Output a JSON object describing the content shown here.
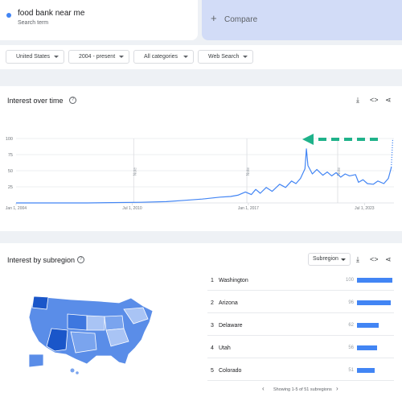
{
  "search": {
    "term": "food bank near me",
    "term_sub": "Search term",
    "term_color": "#4285f4",
    "compare_label": "Compare"
  },
  "filters": {
    "region": "United States",
    "period": "2004 - present",
    "category": "All categories",
    "source": "Web Search"
  },
  "interest_over_time": {
    "title": "Interest over time",
    "icons": [
      "help-icon",
      "download-icon",
      "embed-icon",
      "share-icon"
    ],
    "note_label": "Note",
    "chart_data": {
      "type": "line",
      "y_ticks": [
        100,
        75,
        50,
        25
      ],
      "ylim": [
        0,
        100
      ],
      "x_tick_labels": [
        "Jan 1, 2004",
        "Jul 1, 2010",
        "Jan 1, 2017",
        "Jul 1, 2023"
      ],
      "notes_at": [
        "2010-08",
        "2016-12",
        "2022-01"
      ],
      "series": [
        {
          "color": "#4285f4",
          "points": [
            [
              "2004-01",
              0
            ],
            [
              "2008-01",
              0
            ],
            [
              "2011-01",
              1
            ],
            [
              "2012-06",
              2
            ],
            [
              "2013-06",
              4
            ],
            [
              "2014-06",
              6
            ],
            [
              "2015-06",
              9
            ],
            [
              "2016-01",
              10
            ],
            [
              "2016-06",
              12
            ],
            [
              "2016-11",
              17
            ],
            [
              "2017-03",
              13
            ],
            [
              "2017-06",
              21
            ],
            [
              "2017-09",
              15
            ],
            [
              "2018-01",
              24
            ],
            [
              "2018-05",
              18
            ],
            [
              "2018-10",
              29
            ],
            [
              "2019-02",
              24
            ],
            [
              "2019-06",
              34
            ],
            [
              "2019-09",
              30
            ],
            [
              "2019-12",
              38
            ],
            [
              "2020-03",
              53
            ],
            [
              "2020-04",
              84
            ],
            [
              "2020-05",
              58
            ],
            [
              "2020-08",
              45
            ],
            [
              "2020-11",
              52
            ],
            [
              "2021-03",
              43
            ],
            [
              "2021-06",
              48
            ],
            [
              "2021-09",
              42
            ],
            [
              "2021-12",
              47
            ],
            [
              "2022-03",
              40
            ],
            [
              "2022-06",
              45
            ],
            [
              "2022-09",
              42
            ],
            [
              "2023-01",
              44
            ],
            [
              "2023-03",
              32
            ],
            [
              "2023-06",
              36
            ],
            [
              "2023-09",
              30
            ],
            [
              "2024-01",
              29
            ],
            [
              "2024-04",
              34
            ],
            [
              "2024-08",
              30
            ],
            [
              "2024-11",
              38
            ],
            [
              "2025-01",
              55
            ]
          ]
        }
      ],
      "partial_tail": {
        "from": [
          "2025-01",
          55
        ],
        "to": [
          "2025-02",
          100
        ]
      }
    },
    "annotation_arrow": {
      "color": "#1fb28a",
      "style": "dashed",
      "direction": "left"
    }
  },
  "interest_by_subregion": {
    "title": "Interest by subregion",
    "select_label": "Subregion",
    "icons": [
      "help-icon",
      "download-icon",
      "embed-icon",
      "share-icon"
    ],
    "rankings": [
      {
        "rank": "1",
        "name": "Washington",
        "value": 100
      },
      {
        "rank": "2",
        "name": "Arizona",
        "value": 96
      },
      {
        "rank": "3",
        "name": "Delaware",
        "value": 62
      },
      {
        "rank": "4",
        "name": "Utah",
        "value": 56
      },
      {
        "rank": "5",
        "name": "Colorado",
        "value": 51
      }
    ],
    "footer": "Showing 1-5 of 51 subregions",
    "map_colors": {
      "high": "#1a56c9",
      "mid": "#5a8de8",
      "low": "#a9c4f5"
    }
  }
}
